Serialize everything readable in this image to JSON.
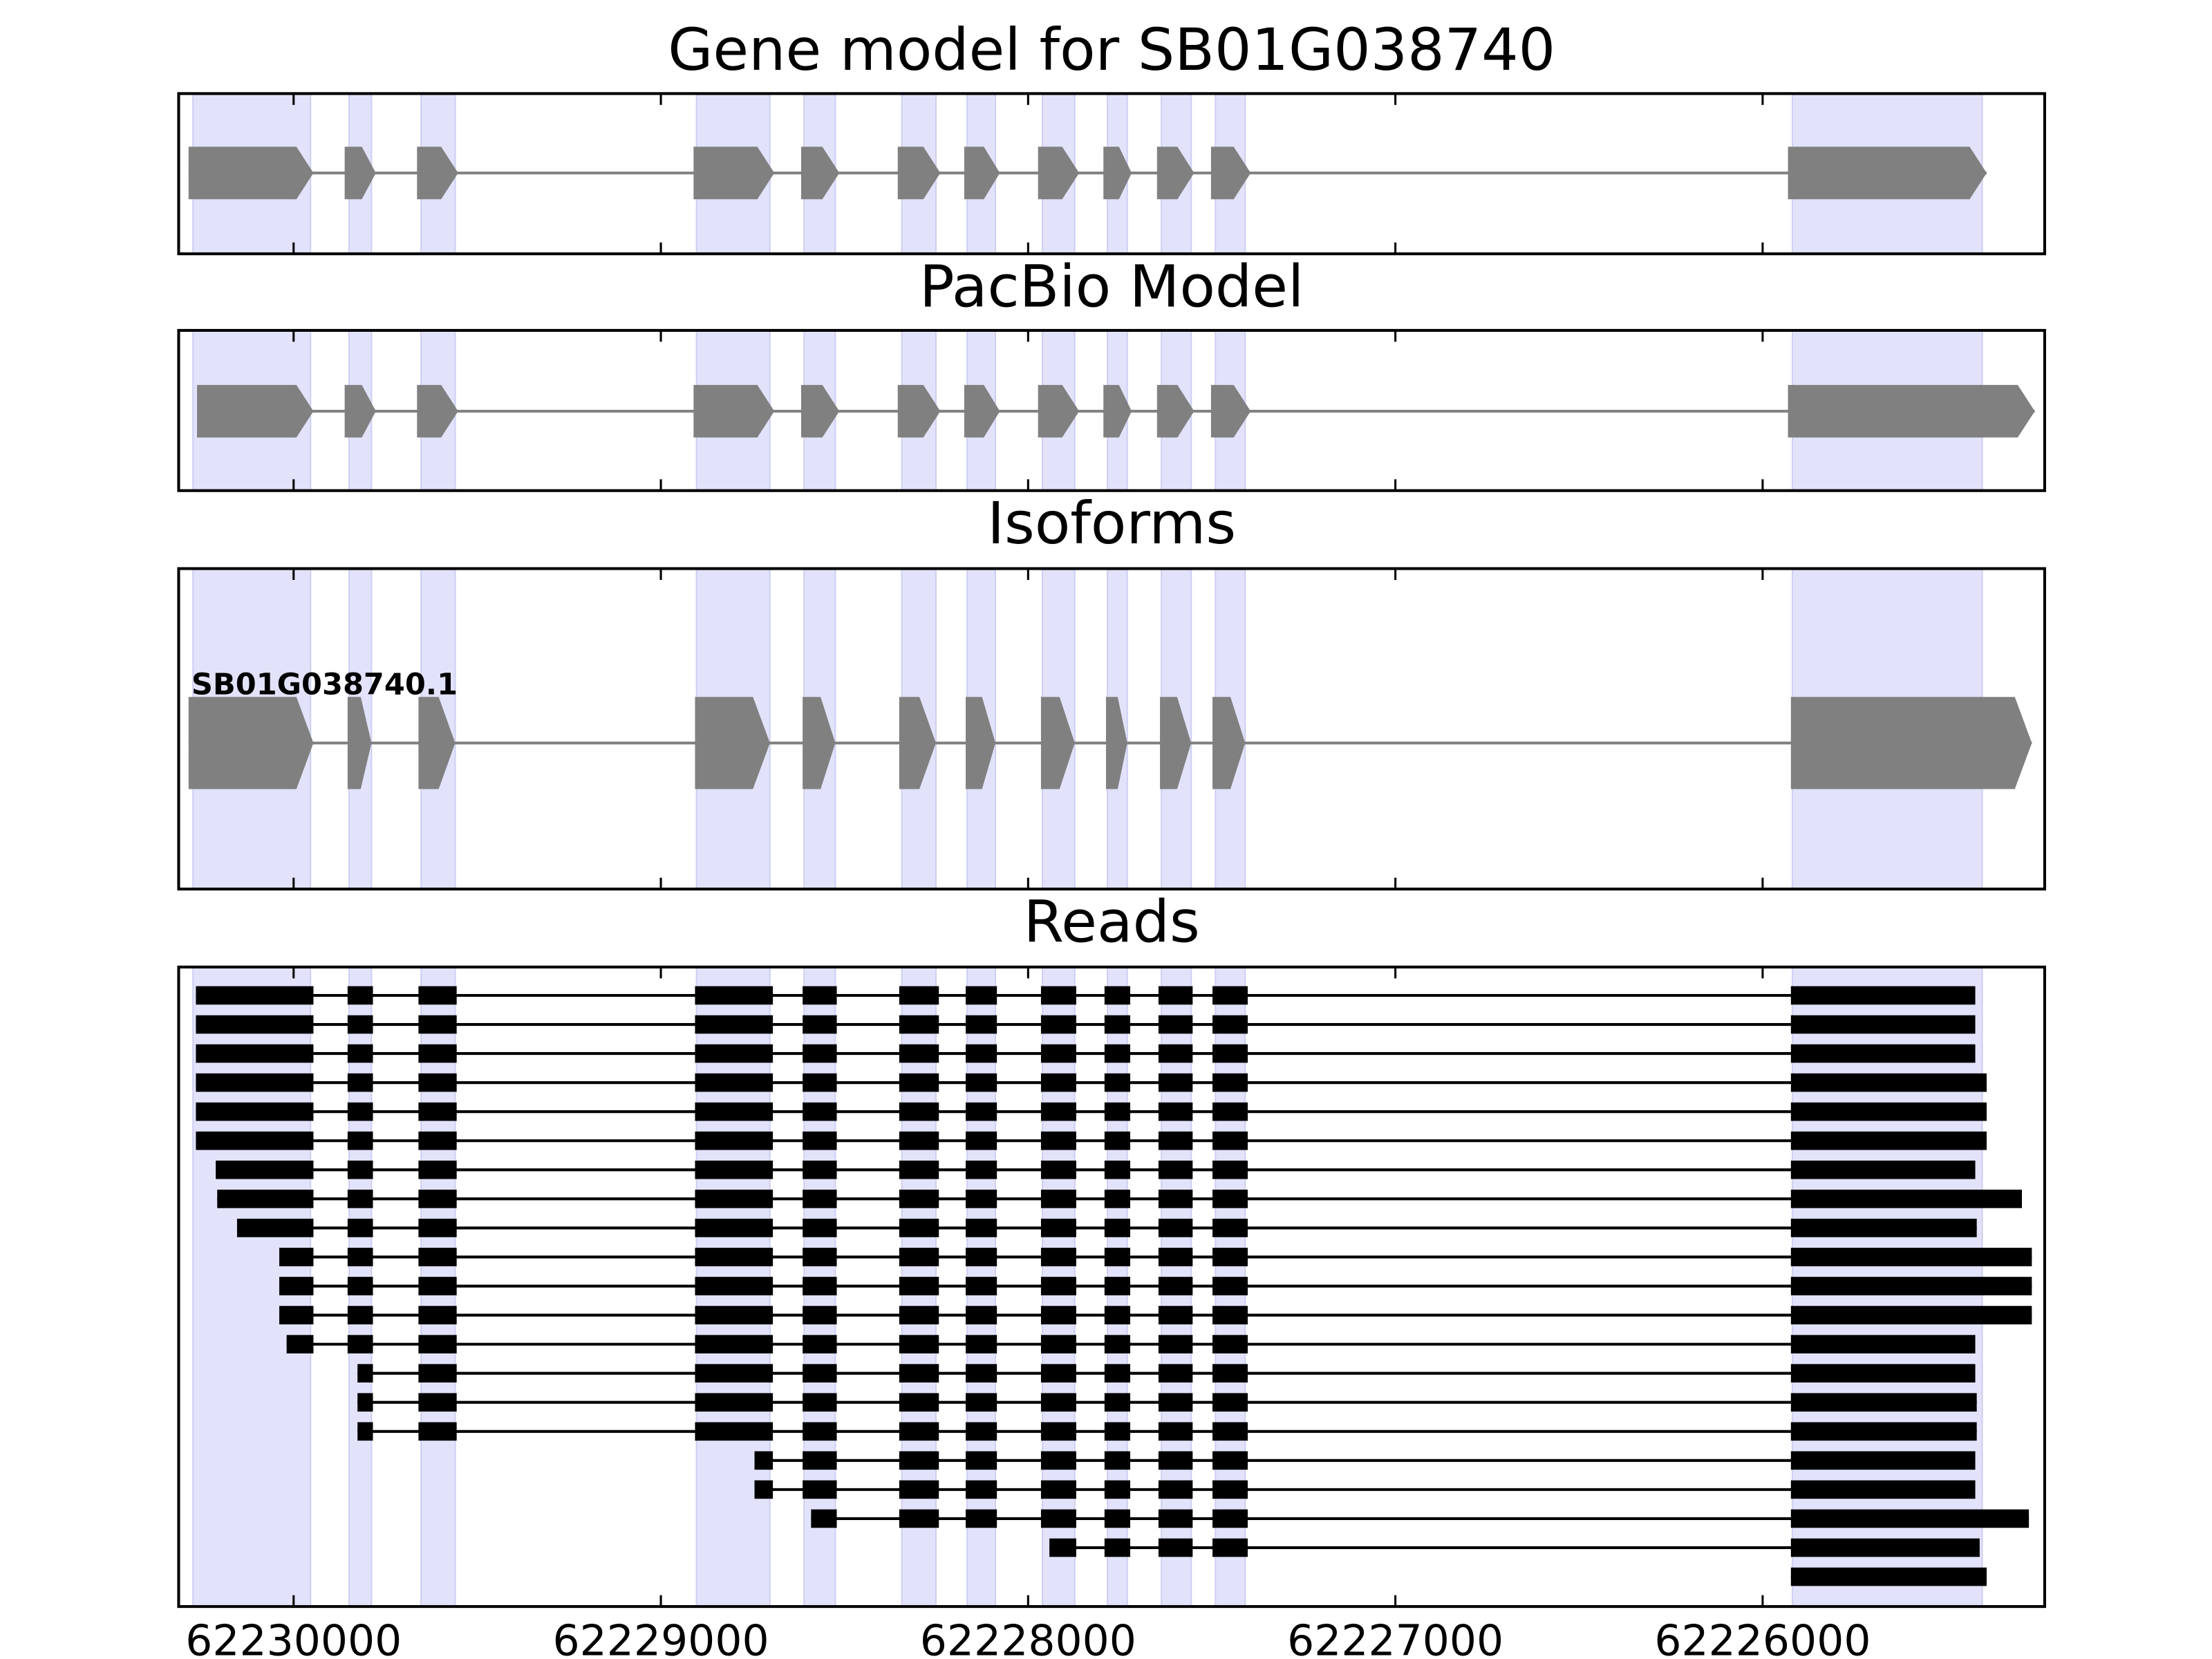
{
  "chart_data": {
    "type": "gene-tracks",
    "xlim": [
      62230313,
      62225232
    ],
    "xticks": [
      62230000,
      62229000,
      62228000,
      62227000,
      62226000
    ],
    "highlights": [
      [
        62230274,
        62229954
      ],
      [
        62229849,
        62229788
      ],
      [
        62229653,
        62229560
      ],
      [
        62228903,
        62228703
      ],
      [
        62228610,
        62228525
      ],
      [
        62228344,
        62228251
      ],
      [
        62228166,
        62228089
      ],
      [
        62227961,
        62227873
      ],
      [
        62227784,
        62227730
      ],
      [
        62227637,
        62227556
      ],
      [
        62227490,
        62227409
      ],
      [
        62225919,
        62225402
      ]
    ],
    "panels": [
      {
        "type": "gene-model",
        "title": "Gene model for SB01G038740",
        "exons": [
          [
            62230286,
            62229946
          ],
          [
            62229861,
            62229776
          ],
          [
            62229664,
            62229552
          ],
          [
            62228911,
            62228691
          ],
          [
            62228618,
            62228514
          ],
          [
            62228355,
            62228239
          ],
          [
            62228174,
            62228077
          ],
          [
            62227973,
            62227861
          ],
          [
            62227795,
            62227718
          ],
          [
            62227649,
            62227548
          ],
          [
            62227502,
            62227394
          ],
          [
            62225931,
            62225390
          ]
        ]
      },
      {
        "type": "gene-model",
        "title": "PacBio Model",
        "exons": [
          [
            62230263,
            62229946
          ],
          [
            62229861,
            62229776
          ],
          [
            62229664,
            62229552
          ],
          [
            62228911,
            62228691
          ],
          [
            62228618,
            62228514
          ],
          [
            62228355,
            62228239
          ],
          [
            62228174,
            62228077
          ],
          [
            62227973,
            62227861
          ],
          [
            62227795,
            62227718
          ],
          [
            62227649,
            62227548
          ],
          [
            62227502,
            62227394
          ],
          [
            62225931,
            62225259
          ]
        ]
      },
      {
        "type": "isoforms",
        "title": "Isoforms",
        "isoforms": [
          {
            "name": "SB01G038740.1",
            "exons": [
              [
                62230286,
                62229946
              ],
              [
                62229853,
                62229788
              ],
              [
                62229660,
                62229560
              ],
              [
                62228907,
                62228703
              ],
              [
                62228614,
                62228525
              ],
              [
                62228351,
                62228251
              ],
              [
                62228170,
                62228089
              ],
              [
                62227965,
                62227873
              ],
              [
                62227788,
                62227730
              ],
              [
                62227641,
                62227556
              ],
              [
                62227498,
                62227409
              ],
              [
                62225923,
                62225267
              ]
            ]
          }
        ]
      },
      {
        "type": "reads",
        "title": "Reads",
        "exons": [
          [
            62230266,
            62229946
          ],
          [
            62229853,
            62229784
          ],
          [
            62229660,
            62229556
          ],
          [
            62228907,
            62228695
          ],
          [
            62228614,
            62228521
          ],
          [
            62228351,
            62228243
          ],
          [
            62228170,
            62228085
          ],
          [
            62227965,
            62227869
          ],
          [
            62227792,
            62227722
          ],
          [
            62227645,
            62227552
          ],
          [
            62227498,
            62227402
          ],
          [
            62225923,
            62225267
          ]
        ],
        "reads": [
          {
            "start": 62230266,
            "end": 62225421
          },
          {
            "start": 62230266,
            "end": 62225421
          },
          {
            "start": 62230266,
            "end": 62225421
          },
          {
            "start": 62230266,
            "end": 62225390
          },
          {
            "start": 62230266,
            "end": 62225390
          },
          {
            "start": 62230266,
            "end": 62225390
          },
          {
            "start": 62230212,
            "end": 62225421
          },
          {
            "start": 62230208,
            "end": 62225294
          },
          {
            "start": 62230154,
            "end": 62225417
          },
          {
            "start": 62230039,
            "end": 62225267
          },
          {
            "start": 62230039,
            "end": 62225267
          },
          {
            "start": 62230039,
            "end": 62225267
          },
          {
            "start": 62230019,
            "end": 62225421
          },
          {
            "start": 62229826,
            "end": 62225421
          },
          {
            "start": 62229826,
            "end": 62225417
          },
          {
            "start": 62229826,
            "end": 62225417
          },
          {
            "start": 62228745,
            "end": 62225421
          },
          {
            "start": 62228745,
            "end": 62225421
          },
          {
            "start": 62228591,
            "end": 62225275
          },
          {
            "start": 62227942,
            "end": 62225409
          },
          {
            "start": 62225923,
            "end": 62225390
          }
        ]
      }
    ]
  }
}
